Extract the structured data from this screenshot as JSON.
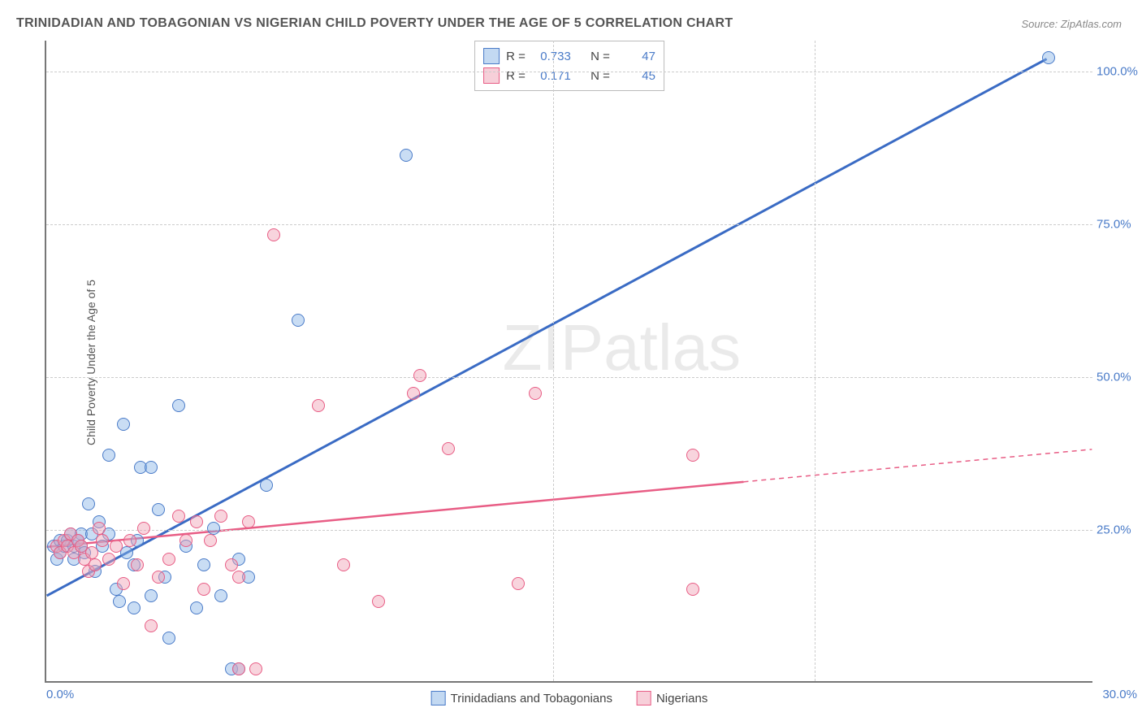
{
  "title": "TRINIDADIAN AND TOBAGONIAN VS NIGERIAN CHILD POVERTY UNDER THE AGE OF 5 CORRELATION CHART",
  "source": "Source: ZipAtlas.com",
  "ylabel": "Child Poverty Under the Age of 5",
  "watermark": "ZIPatlas",
  "chart": {
    "type": "scatter",
    "xlim": [
      0,
      30
    ],
    "ylim": [
      0,
      105
    ],
    "x_tick_labels": {
      "min": "0.0%",
      "max": "30.0%"
    },
    "y_ticks": [
      25,
      50,
      75,
      100
    ],
    "y_tick_labels": [
      "25.0%",
      "50.0%",
      "75.0%",
      "100.0%"
    ],
    "x_grid_at": [
      14.5,
      22
    ],
    "background_color": "#ffffff",
    "grid_color": "#cccccc",
    "axis_color": "#777777",
    "tick_label_color": "#4a7bc8",
    "point_radius": 8,
    "series": [
      {
        "name": "Trinidadians and Tobagonians",
        "color_fill": "rgba(135,180,230,0.45)",
        "color_stroke": "#4a7bc8",
        "r_value": "0.733",
        "n_value": "47",
        "trend": {
          "x1": 0,
          "y1": 14,
          "x2": 28.7,
          "y2": 102,
          "solid_until_x": 28.7,
          "stroke": "#3a6bc4",
          "width": 3
        },
        "points": [
          [
            0.2,
            22
          ],
          [
            0.3,
            20
          ],
          [
            0.4,
            21
          ],
          [
            0.4,
            23
          ],
          [
            0.5,
            22
          ],
          [
            0.6,
            23
          ],
          [
            0.7,
            24
          ],
          [
            0.8,
            22
          ],
          [
            0.8,
            20
          ],
          [
            1.0,
            24
          ],
          [
            1.0,
            22
          ],
          [
            1.1,
            21
          ],
          [
            1.2,
            29
          ],
          [
            1.4,
            18
          ],
          [
            1.5,
            26
          ],
          [
            1.6,
            22
          ],
          [
            1.8,
            37
          ],
          [
            2.0,
            15
          ],
          [
            2.1,
            13
          ],
          [
            2.2,
            42
          ],
          [
            2.3,
            21
          ],
          [
            2.5,
            19
          ],
          [
            2.6,
            23
          ],
          [
            2.7,
            35
          ],
          [
            3.0,
            14
          ],
          [
            3.2,
            28
          ],
          [
            3.4,
            17
          ],
          [
            3.5,
            7
          ],
          [
            3.8,
            45
          ],
          [
            4.0,
            22
          ],
          [
            4.3,
            12
          ],
          [
            4.5,
            19
          ],
          [
            4.8,
            25
          ],
          [
            5.0,
            14
          ],
          [
            5.3,
            2
          ],
          [
            5.5,
            20
          ],
          [
            5.8,
            17
          ],
          [
            6.3,
            32
          ],
          [
            7.2,
            59
          ],
          [
            5.5,
            2
          ],
          [
            2.5,
            12
          ],
          [
            10.3,
            86
          ],
          [
            3.0,
            35
          ],
          [
            1.8,
            24
          ],
          [
            0.9,
            23
          ],
          [
            1.3,
            24
          ],
          [
            28.7,
            102
          ]
        ]
      },
      {
        "name": "Nigerians",
        "color_fill": "rgba(240,160,180,0.45)",
        "color_stroke": "#e85d85",
        "r_value": "0.171",
        "n_value": "45",
        "trend": {
          "x1": 0,
          "y1": 22,
          "x2": 30,
          "y2": 38,
          "solid_until_x": 20,
          "stroke": "#e85d85",
          "width": 2.5
        },
        "points": [
          [
            0.3,
            22
          ],
          [
            0.4,
            21
          ],
          [
            0.5,
            23
          ],
          [
            0.6,
            22
          ],
          [
            0.7,
            24
          ],
          [
            0.8,
            21
          ],
          [
            0.9,
            23
          ],
          [
            1.0,
            22
          ],
          [
            1.1,
            20
          ],
          [
            1.3,
            21
          ],
          [
            1.5,
            25
          ],
          [
            1.6,
            23
          ],
          [
            1.8,
            20
          ],
          [
            2.0,
            22
          ],
          [
            2.2,
            16
          ],
          [
            2.4,
            23
          ],
          [
            2.6,
            19
          ],
          [
            2.8,
            25
          ],
          [
            3.0,
            9
          ],
          [
            3.2,
            17
          ],
          [
            3.5,
            20
          ],
          [
            3.8,
            27
          ],
          [
            4.0,
            23
          ],
          [
            4.3,
            26
          ],
          [
            4.5,
            15
          ],
          [
            4.7,
            23
          ],
          [
            5.0,
            27
          ],
          [
            5.3,
            19
          ],
          [
            5.5,
            17
          ],
          [
            5.8,
            26
          ],
          [
            5.5,
            2
          ],
          [
            6.0,
            2
          ],
          [
            6.5,
            73
          ],
          [
            7.8,
            45
          ],
          [
            8.5,
            19
          ],
          [
            9.5,
            13
          ],
          [
            10.5,
            47
          ],
          [
            10.7,
            50
          ],
          [
            11.5,
            38
          ],
          [
            13.5,
            16
          ],
          [
            14.0,
            47
          ],
          [
            18.5,
            15
          ],
          [
            18.5,
            37
          ],
          [
            1.2,
            18
          ],
          [
            1.4,
            19
          ]
        ]
      }
    ]
  },
  "legend_top": {
    "r_label": "R =",
    "n_label": "N ="
  },
  "legend_bottom": {
    "items": [
      "Trinidadians and Tobagonians",
      "Nigerians"
    ]
  }
}
